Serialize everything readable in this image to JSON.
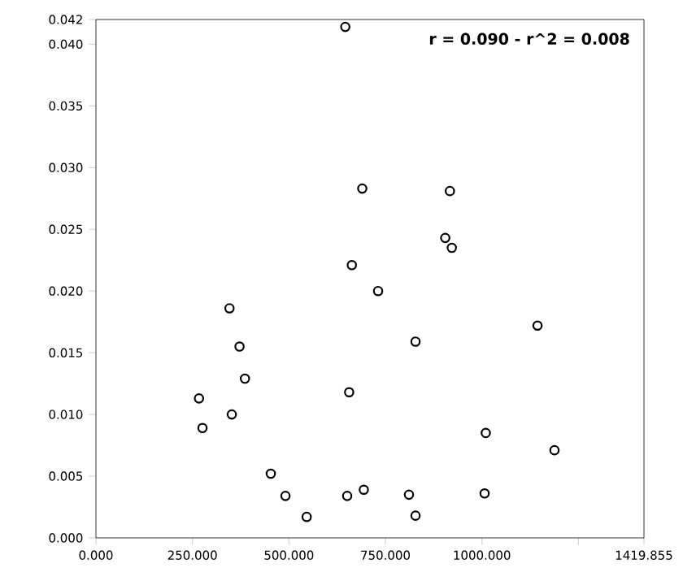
{
  "chart_data": {
    "type": "scatter",
    "annotations": [
      "r = 0.090 - r^2 = 0.008"
    ],
    "x": [
      646,
      690,
      663,
      731,
      917,
      905,
      922,
      346,
      372,
      386,
      267,
      352,
      276,
      656,
      453,
      491,
      546,
      651,
      694,
      1144,
      828,
      1010,
      1188,
      811,
      1007,
      828
    ],
    "values": [
      0.0414,
      0.0283,
      0.0221,
      0.02,
      0.0281,
      0.0243,
      0.0235,
      0.0186,
      0.0155,
      0.0129,
      0.0113,
      0.01,
      0.0089,
      0.0118,
      0.0052,
      0.0034,
      0.0017,
      0.0034,
      0.0039,
      0.0172,
      0.0159,
      0.0085,
      0.0071,
      0.0035,
      0.0036,
      0.0018
    ],
    "color": "#000000",
    "marker": "circle",
    "grid": false,
    "xlim": [
      0,
      1419.855
    ],
    "ylim": [
      0,
      0.042
    ],
    "xticks": [
      {
        "value": 0,
        "label": "0.000"
      },
      {
        "value": 250,
        "label": "250.000"
      },
      {
        "value": 500,
        "label": "500.000"
      },
      {
        "value": 750,
        "label": "750.000"
      },
      {
        "value": 1000,
        "label": "1000.000"
      },
      {
        "value": 1250,
        "label": null
      },
      {
        "value": 1419.855,
        "label": "1419.855"
      }
    ],
    "yticks": [
      {
        "value": 0,
        "label": "0.000"
      },
      {
        "value": 0.005,
        "label": "0.005"
      },
      {
        "value": 0.01,
        "label": "0.010"
      },
      {
        "value": 0.015,
        "label": "0.015"
      },
      {
        "value": 0.02,
        "label": "0.020"
      },
      {
        "value": 0.025,
        "label": "0.025"
      },
      {
        "value": 0.03,
        "label": "0.030"
      },
      {
        "value": 0.035,
        "label": "0.035"
      },
      {
        "value": 0.04,
        "label": "0.040"
      },
      {
        "value": 0.042,
        "label": "0.042"
      }
    ]
  }
}
